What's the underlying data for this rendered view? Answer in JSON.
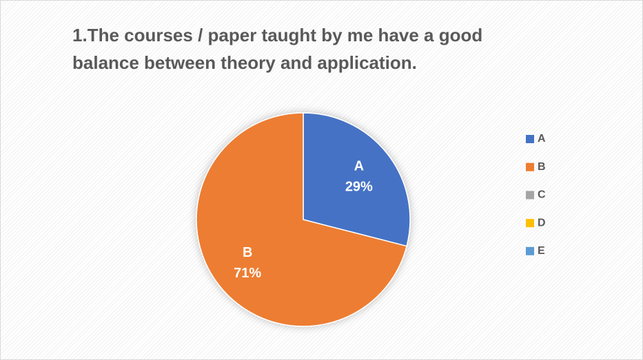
{
  "chart_data": {
    "type": "pie",
    "title": "1.The courses / paper taught by me have a good balance between theory and application.",
    "categories": [
      "A",
      "B",
      "C",
      "D",
      "E"
    ],
    "values": [
      29,
      71,
      0,
      0,
      0
    ],
    "value_labels": [
      "29%",
      "71%",
      null,
      null,
      null
    ],
    "colors": [
      "#4472c4",
      "#ed7d31",
      "#a5a5a5",
      "#ffc000",
      "#5b9bd5"
    ],
    "legend": "right"
  }
}
